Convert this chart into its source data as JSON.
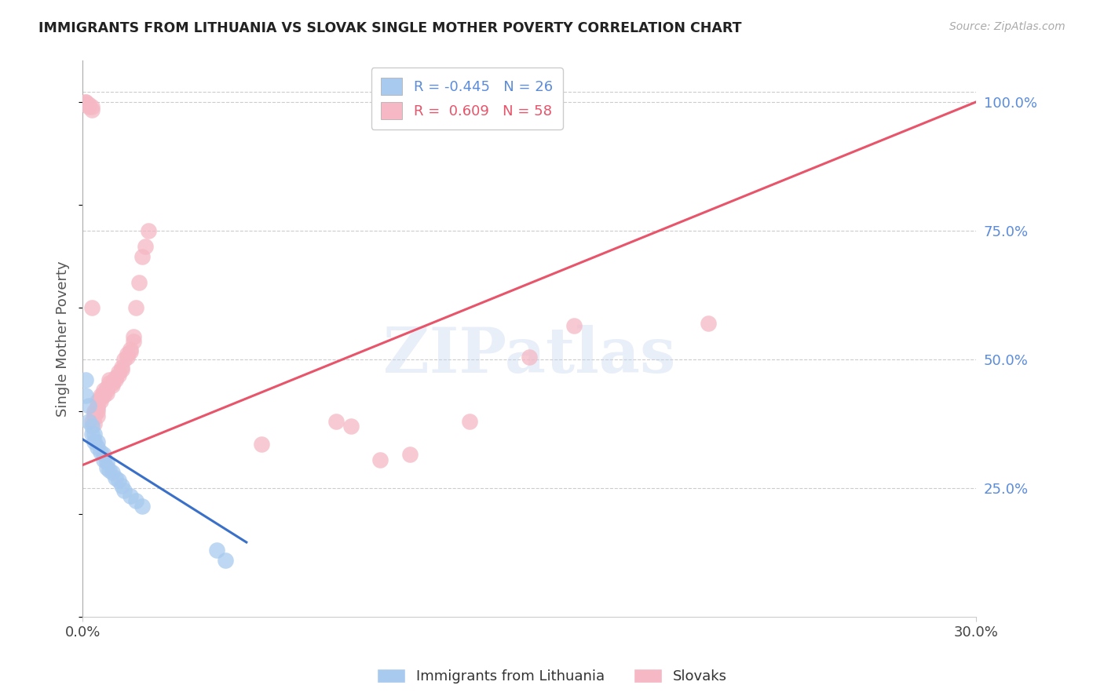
{
  "title": "IMMIGRANTS FROM LITHUANIA VS SLOVAK SINGLE MOTHER POVERTY CORRELATION CHART",
  "source": "Source: ZipAtlas.com",
  "ylabel": "Single Mother Poverty",
  "xlim": [
    0.0,
    0.3
  ],
  "ylim": [
    0.0,
    1.08
  ],
  "yticks_right": [
    0.25,
    0.5,
    0.75,
    1.0
  ],
  "ytick_labels_right": [
    "25.0%",
    "50.0%",
    "75.0%",
    "100.0%"
  ],
  "blue_R": -0.445,
  "blue_N": 26,
  "pink_R": 0.609,
  "pink_N": 58,
  "blue_color": "#A8CAEE",
  "pink_color": "#F5B8C4",
  "blue_line_color": "#3A70C8",
  "pink_line_color": "#E8546A",
  "watermark_text": "ZIPatlas",
  "blue_scatter_x": [
    0.001,
    0.001,
    0.002,
    0.002,
    0.003,
    0.003,
    0.004,
    0.004,
    0.005,
    0.005,
    0.006,
    0.007,
    0.007,
    0.008,
    0.008,
    0.009,
    0.01,
    0.011,
    0.012,
    0.013,
    0.014,
    0.016,
    0.018,
    0.02,
    0.045,
    0.048
  ],
  "blue_scatter_y": [
    0.46,
    0.43,
    0.41,
    0.38,
    0.37,
    0.355,
    0.355,
    0.34,
    0.34,
    0.33,
    0.32,
    0.315,
    0.305,
    0.3,
    0.29,
    0.285,
    0.28,
    0.27,
    0.265,
    0.255,
    0.245,
    0.235,
    0.225,
    0.215,
    0.13,
    0.11
  ],
  "pink_scatter_x": [
    0.001,
    0.001,
    0.001,
    0.002,
    0.002,
    0.003,
    0.003,
    0.003,
    0.003,
    0.004,
    0.004,
    0.004,
    0.004,
    0.005,
    0.005,
    0.005,
    0.005,
    0.005,
    0.006,
    0.006,
    0.006,
    0.007,
    0.007,
    0.007,
    0.008,
    0.008,
    0.008,
    0.009,
    0.009,
    0.01,
    0.01,
    0.011,
    0.011,
    0.012,
    0.012,
    0.013,
    0.013,
    0.014,
    0.015,
    0.015,
    0.016,
    0.016,
    0.017,
    0.017,
    0.018,
    0.019,
    0.02,
    0.021,
    0.022,
    0.06,
    0.085,
    0.09,
    0.1,
    0.11,
    0.13,
    0.15,
    0.165,
    0.21
  ],
  "pink_scatter_y": [
    1.0,
    1.0,
    0.995,
    0.995,
    0.99,
    0.99,
    0.985,
    0.6,
    0.38,
    0.4,
    0.395,
    0.39,
    0.375,
    0.42,
    0.41,
    0.405,
    0.4,
    0.39,
    0.43,
    0.425,
    0.42,
    0.44,
    0.435,
    0.43,
    0.445,
    0.44,
    0.435,
    0.46,
    0.455,
    0.455,
    0.45,
    0.465,
    0.46,
    0.475,
    0.47,
    0.485,
    0.48,
    0.5,
    0.51,
    0.505,
    0.52,
    0.515,
    0.545,
    0.535,
    0.6,
    0.65,
    0.7,
    0.72,
    0.75,
    0.335,
    0.38,
    0.37,
    0.305,
    0.315,
    0.38,
    0.505,
    0.565,
    0.57
  ],
  "blue_line_x": [
    0.0,
    0.055
  ],
  "blue_line_y": [
    0.345,
    0.145
  ],
  "pink_line_x": [
    0.0,
    0.3
  ],
  "pink_line_y": [
    0.295,
    1.0
  ]
}
